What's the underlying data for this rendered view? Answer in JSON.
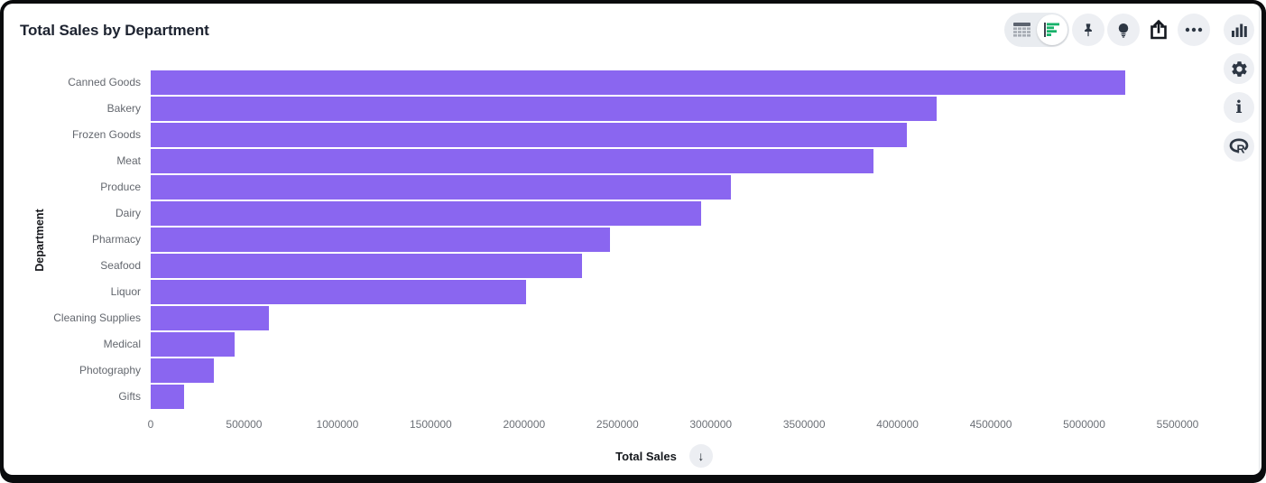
{
  "header": {
    "title": "Total Sales by Department"
  },
  "toolbar": {
    "view_toggle": {
      "options": [
        "table-view",
        "chart-view"
      ],
      "selected": "chart-view"
    },
    "buttons": [
      "pin",
      "insights-bulb",
      "share-export",
      "more-options"
    ]
  },
  "rail": {
    "buttons": [
      "chart-panel",
      "settings",
      "info",
      "r-visualization"
    ]
  },
  "colors": {
    "bar": "#8a66f0",
    "accent_green": "#17b26a",
    "icon_dark": "#2d3643",
    "button_bg": "#edeff3",
    "title_text": "#1d2330",
    "axis_text": "#6c7077"
  },
  "x_axis": {
    "label": "Total Sales",
    "sort_icon": "↓",
    "sort_direction": "descending"
  },
  "y_axis": {
    "label": "Department"
  },
  "chart_data": {
    "type": "bar",
    "orientation": "horizontal",
    "title": "Total Sales by Department",
    "categories": [
      "Canned Goods",
      "Bakery",
      "Frozen Goods",
      "Meat",
      "Produce",
      "Dairy",
      "Pharmacy",
      "Seafood",
      "Liquor",
      "Cleaning Supplies",
      "Medical",
      "Photography",
      "Gifts"
    ],
    "values": [
      5220000,
      4210000,
      4050000,
      3870000,
      3110000,
      2950000,
      2460000,
      2310000,
      2010000,
      635000,
      450000,
      340000,
      180000
    ],
    "xlabel": "Total Sales",
    "ylabel": "Department",
    "xlim": [
      0,
      5500000
    ],
    "x_ticks": [
      0,
      500000,
      1000000,
      1500000,
      2000000,
      2500000,
      3000000,
      3500000,
      4000000,
      4500000,
      5000000,
      5500000
    ],
    "bar_color": "#8a66f0",
    "grid": false,
    "legend": false,
    "sort": "descending"
  }
}
